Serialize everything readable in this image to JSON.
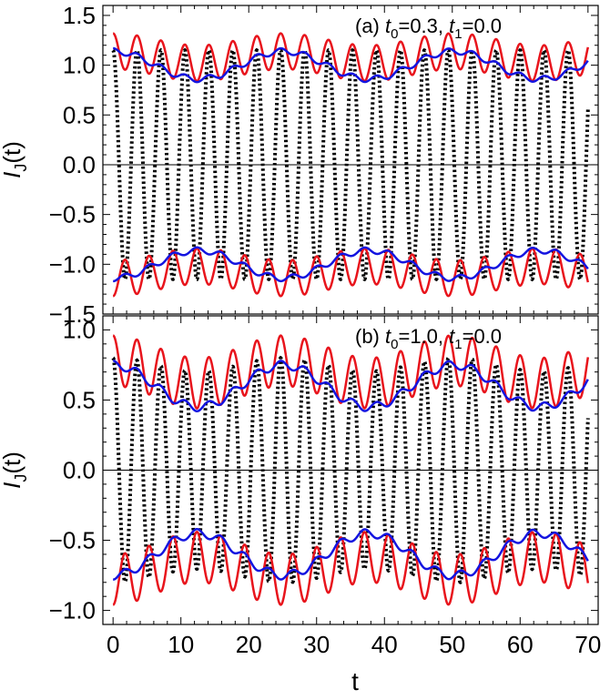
{
  "figure": {
    "xlabel": "t",
    "colors": {
      "red": "#e8141c",
      "blue": "#1414e0",
      "black": "#000000"
    }
  },
  "chart_data": [
    {
      "type": "line",
      "panel_label": "(a)",
      "annotation": {
        "prefix": "(a) ",
        "t0_label": "t",
        "t0_sub": "0",
        "t0_value": "=0.3, ",
        "t1_label": "t",
        "t1_sub": "1",
        "t1_value": "=0.0"
      },
      "ylabel": {
        "main": "I",
        "sub": "J",
        "suffix": "(t)"
      },
      "xlim": [
        -1.5,
        71.5
      ],
      "ylim": [
        -1.5,
        1.6
      ],
      "xticks": [
        0,
        10,
        20,
        30,
        40,
        50,
        60,
        70
      ],
      "yticks": [
        1.5,
        1.0,
        0.5,
        0.0,
        -0.5,
        -1.0,
        -1.5
      ],
      "ytick_labels": [
        "1.5",
        "1.0",
        "0.5",
        "0.0",
        "−0.5",
        "−1.0",
        "−1.5"
      ],
      "zero_line": true,
      "series": [
        {
          "style": "dotted",
          "color": "#000000",
          "amplitude": 1.15,
          "omega": 1.78,
          "phase": 0.0,
          "mod_depth": 0.0,
          "mod_omega": 0.25
        },
        {
          "style": "solid",
          "color": "#e8141c",
          "base": 1.08,
          "wobble": 0.18,
          "wobble_omega": 1.78,
          "slow": 0.06,
          "slow_omega": 0.25,
          "branches": [
            1,
            -1
          ]
        },
        {
          "style": "solid",
          "color": "#1414e0",
          "base": 1.0,
          "wobble": 0.03,
          "wobble_omega": 1.78,
          "slow": 0.14,
          "slow_omega": 0.25,
          "branches": [
            1,
            -1
          ]
        }
      ]
    },
    {
      "type": "line",
      "panel_label": "(b)",
      "annotation": {
        "prefix": "(b) ",
        "t0_label": "t",
        "t0_sub": "0",
        "t0_value": "=1.0, ",
        "t1_label": "t",
        "t1_sub": "1",
        "t1_value": "=0.0"
      },
      "ylabel": {
        "main": "I",
        "sub": "J",
        "suffix": "(t)"
      },
      "xlim": [
        -1.5,
        71.5
      ],
      "ylim": [
        -1.1,
        1.1
      ],
      "xticks": [
        0,
        10,
        20,
        30,
        40,
        50,
        60,
        70
      ],
      "xtick_labels": [
        "0",
        "10",
        "20",
        "30",
        "40",
        "50",
        "60",
        "70"
      ],
      "yticks": [
        1.0,
        0.5,
        0.0,
        -0.5,
        -1.0
      ],
      "ytick_labels": [
        "1.0",
        "0.5",
        "0.0",
        "−0.5",
        "−1.0"
      ],
      "zero_line": true,
      "series": [
        {
          "style": "dotted",
          "color": "#000000",
          "amplitude": 0.8,
          "omega": 1.78,
          "phase": 0.0,
          "mod_depth": 0.12,
          "mod_omega": 0.25
        },
        {
          "style": "solid",
          "color": "#e8141c",
          "base": 0.7,
          "wobble": 0.18,
          "wobble_omega": 1.78,
          "slow": 0.08,
          "slow_omega": 0.25,
          "branches": [
            1,
            -1
          ]
        },
        {
          "style": "solid",
          "color": "#1414e0",
          "base": 0.6,
          "wobble": 0.03,
          "wobble_omega": 1.78,
          "slow": 0.15,
          "slow_omega": 0.25,
          "branches": [
            1,
            -1
          ]
        }
      ]
    }
  ]
}
